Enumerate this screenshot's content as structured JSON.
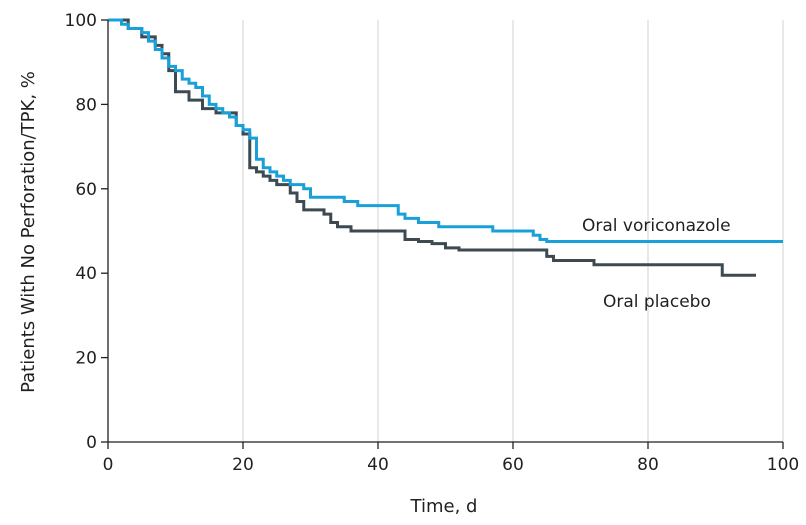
{
  "chart_data": {
    "type": "line",
    "title": "",
    "xlabel": "Time, d",
    "ylabel": "Patients With No Perforation/TPK, %",
    "xlim": [
      0,
      100
    ],
    "ylim": [
      0,
      100
    ],
    "xticks": [
      0,
      20,
      40,
      60,
      80,
      100
    ],
    "yticks": [
      0,
      20,
      40,
      60,
      80,
      100
    ],
    "xtick_labels": [
      "0",
      "20",
      "40",
      "60",
      "80",
      "100"
    ],
    "ytick_labels": [
      "0",
      "20",
      "40",
      "60",
      "80",
      "100"
    ],
    "grid": "vertical",
    "legend": "direct labels on curves",
    "step": true,
    "series": [
      {
        "name": "Oral voriconazole",
        "color": "#1aa0d8",
        "x": [
          0,
          2,
          3,
          5,
          6,
          7,
          8,
          9,
          10,
          11,
          12,
          13,
          14,
          15,
          16,
          17,
          18,
          19,
          20,
          21,
          22,
          23,
          24,
          25,
          26,
          27,
          29,
          30,
          35,
          37,
          43,
          44,
          46,
          49,
          57,
          63,
          64,
          65,
          100
        ],
        "y": [
          100,
          99,
          98,
          97,
          95,
          93,
          91,
          89,
          88,
          86,
          85,
          84,
          82,
          80,
          79,
          78,
          77,
          75,
          74,
          72,
          67,
          65,
          64,
          63,
          62,
          61,
          60,
          58,
          57,
          56,
          54,
          53,
          52,
          51,
          50,
          49,
          48,
          47.5,
          47.5
        ]
      },
      {
        "name": "Oral placebo",
        "color": "#3d4a52",
        "x": [
          0,
          3,
          5,
          7,
          8,
          9,
          10,
          12,
          14,
          16,
          19,
          20,
          21,
          22,
          23,
          24,
          25,
          27,
          28,
          29,
          32,
          33,
          34,
          36,
          44,
          46,
          48,
          50,
          52,
          65,
          66,
          67,
          72,
          91,
          96
        ],
        "y": [
          100,
          98,
          96,
          94,
          92,
          88,
          83,
          81,
          79,
          78,
          75,
          73,
          65,
          64,
          63,
          62,
          61,
          59,
          57,
          55,
          54,
          52,
          51,
          50,
          48,
          47.5,
          47,
          46,
          45.5,
          44,
          43,
          43,
          42,
          39.5,
          39.5
        ]
      }
    ]
  }
}
